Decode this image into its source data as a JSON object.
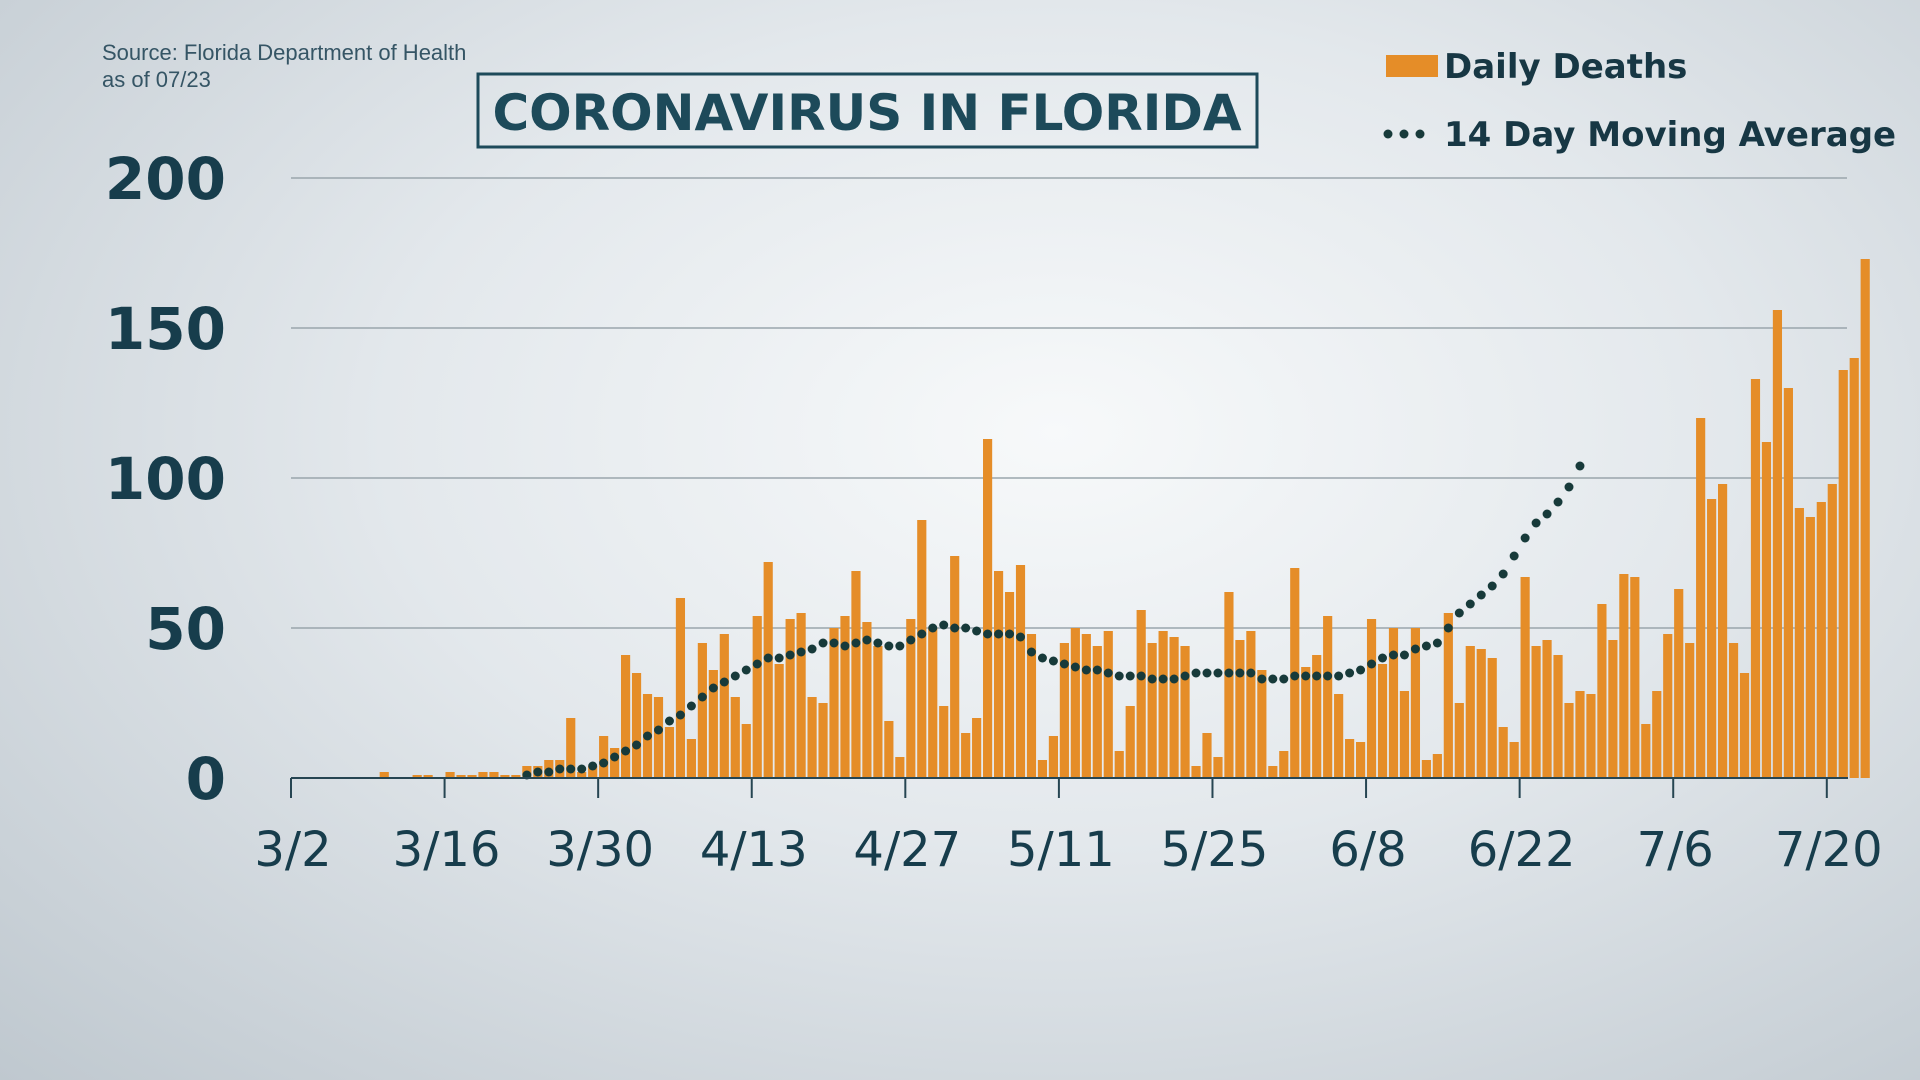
{
  "source": {
    "line1": "Source: Florida Department of Health",
    "line2": "as of 07/23"
  },
  "colors": {
    "bar": "#e58d28",
    "dot": "#173a3a",
    "grid": "#9aa5ac",
    "axis": "#264552",
    "title_border": "#1d4a5a"
  },
  "chart_data": {
    "type": "bar",
    "title": "CORONAVIRUS IN FLORIDA",
    "xlabel": "",
    "ylabel": "",
    "ylim": [
      0,
      200
    ],
    "yticks": [
      0,
      50,
      100,
      150,
      200
    ],
    "ytick_labels": [
      "0",
      "50",
      "100",
      "150",
      "200"
    ],
    "grid": true,
    "legend_position": "top-right",
    "x_start_index": 0,
    "xticks": [
      {
        "index": 0,
        "label": "3/2"
      },
      {
        "index": 14,
        "label": "3/16"
      },
      {
        "index": 28,
        "label": "3/30"
      },
      {
        "index": 42,
        "label": "4/13"
      },
      {
        "index": 56,
        "label": "4/27"
      },
      {
        "index": 70,
        "label": "5/11"
      },
      {
        "index": 84,
        "label": "5/25"
      },
      {
        "index": 98,
        "label": "6/8"
      },
      {
        "index": 112,
        "label": "6/22"
      },
      {
        "index": 126,
        "label": "7/6"
      },
      {
        "index": 140,
        "label": "7/20"
      }
    ],
    "series": [
      {
        "name": "Daily Deaths",
        "style": "bar",
        "values": [
          0,
          0,
          0,
          0,
          0,
          0,
          0,
          0,
          2,
          0,
          0,
          1,
          1,
          0,
          2,
          1,
          1,
          2,
          2,
          1,
          1,
          4,
          4,
          6,
          6,
          20,
          2,
          4,
          14,
          10,
          41,
          35,
          28,
          27,
          17,
          60,
          13,
          45,
          36,
          48,
          27,
          18,
          54,
          72,
          38,
          53,
          55,
          27,
          25,
          50,
          54,
          69,
          52,
          44,
          19,
          7,
          53,
          86,
          50,
          24,
          74,
          15,
          20,
          113,
          69,
          62,
          71,
          48,
          6,
          14,
          45,
          50,
          48,
          44,
          49,
          9,
          24,
          56,
          45,
          49,
          47,
          44,
          4,
          15,
          7,
          62,
          46,
          49,
          36,
          4,
          9,
          70,
          37,
          41,
          54,
          28,
          13,
          12,
          53,
          38,
          50,
          29,
          50,
          6,
          8,
          55,
          25,
          44,
          43,
          40,
          17,
          12,
          67,
          44,
          46,
          41,
          25,
          29,
          28,
          58,
          46,
          68,
          67,
          18,
          29,
          48,
          63,
          45,
          120,
          93,
          98,
          45,
          35,
          133,
          112,
          156,
          130,
          90,
          87,
          92,
          98,
          136,
          140,
          173
        ]
      },
      {
        "name": "14 Day Moving Average",
        "style": "dotted-line",
        "start_index": 21,
        "values": [
          1,
          2,
          2,
          3,
          3,
          3,
          4,
          5,
          7,
          9,
          11,
          14,
          16,
          19,
          21,
          24,
          27,
          30,
          32,
          34,
          36,
          38,
          40,
          40,
          41,
          42,
          43,
          45,
          45,
          44,
          45,
          46,
          45,
          44,
          44,
          46,
          48,
          50,
          51,
          50,
          50,
          49,
          48,
          48,
          48,
          47,
          42,
          40,
          39,
          38,
          37,
          36,
          36,
          35,
          34,
          34,
          34,
          33,
          33,
          33,
          34,
          35,
          35,
          35,
          35,
          35,
          35,
          33,
          33,
          33,
          34,
          34,
          34,
          34,
          34,
          35,
          36,
          38,
          40,
          41,
          41,
          43,
          44,
          45,
          50,
          55,
          58,
          61,
          64,
          68,
          74,
          80,
          85,
          88,
          92,
          97,
          104
        ]
      }
    ]
  }
}
